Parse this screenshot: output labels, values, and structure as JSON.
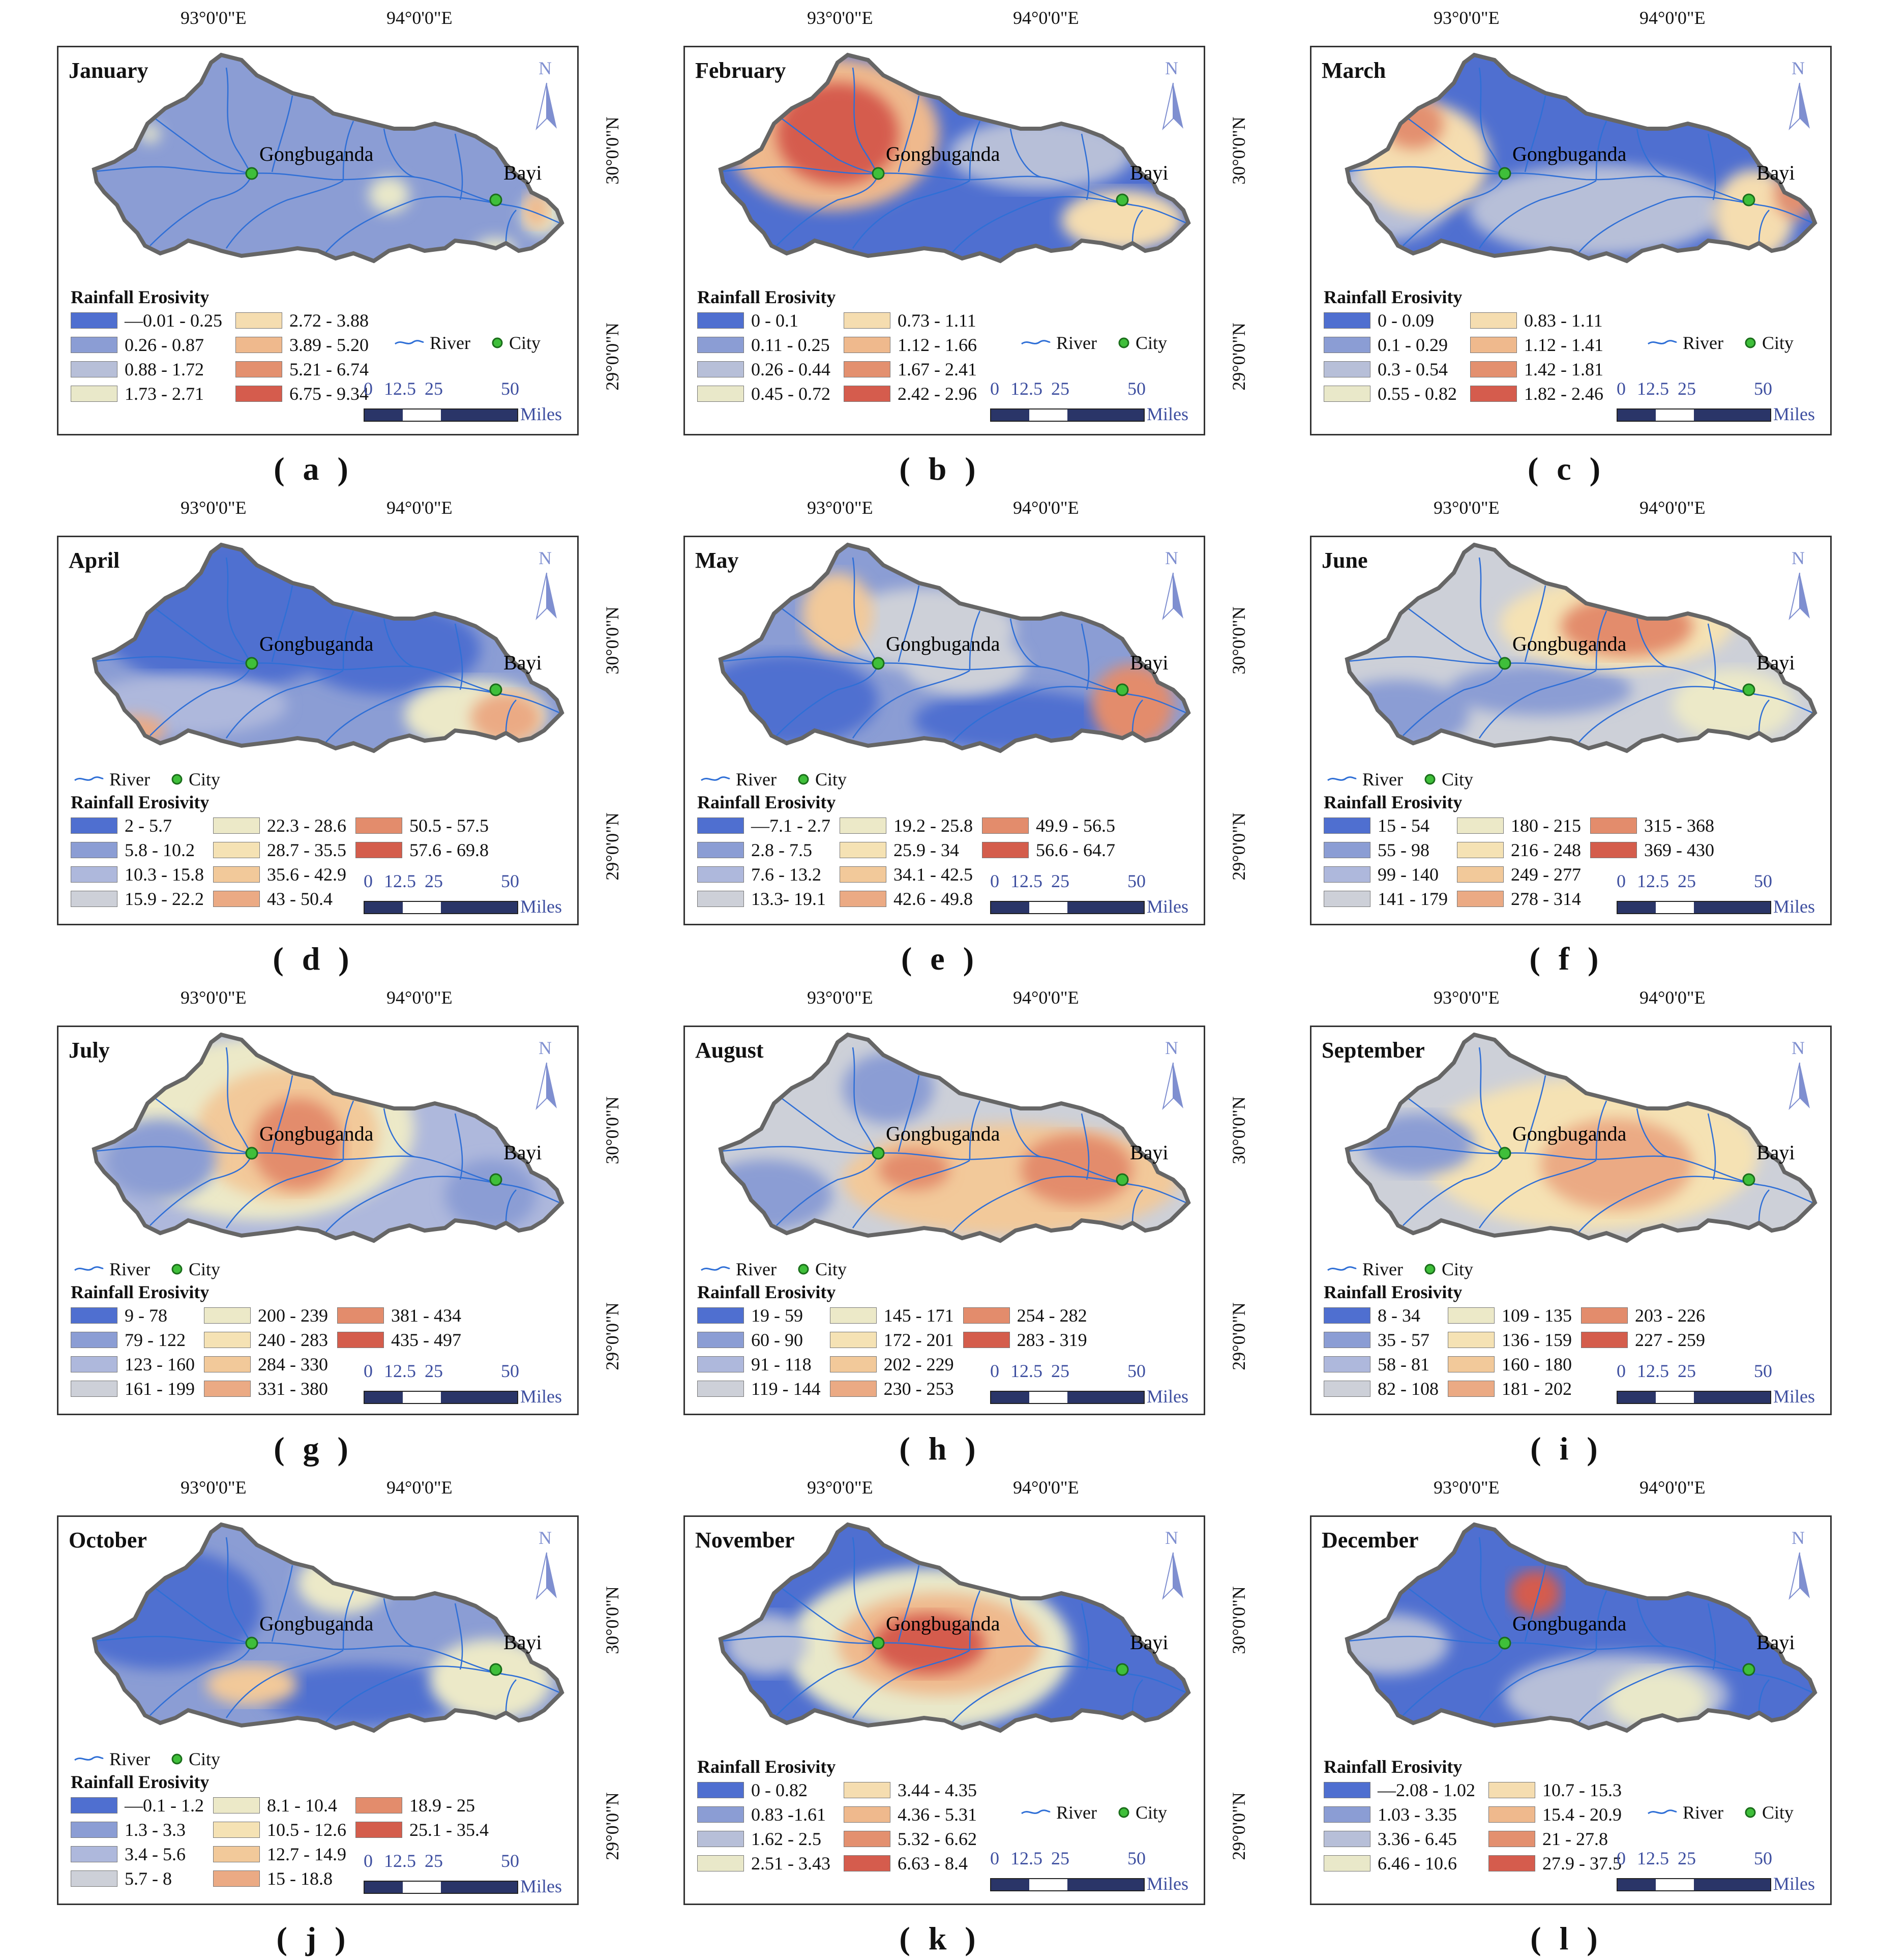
{
  "figure": {
    "coordinates": {
      "lon_labels": [
        "93°0'0\"E",
        "94°0'0\"E"
      ],
      "lat_labels": [
        "30°0'0\"N",
        "29°0'0\"N"
      ]
    },
    "legend_title": "Rainfall Erosivity",
    "river_label": "River",
    "city_label": "City",
    "city_names": [
      "Gongbuganda",
      "Bayi"
    ],
    "scale_bar": {
      "ticks": [
        "0",
        "12.5",
        "25",
        "50"
      ],
      "unit": "Miles"
    },
    "north_label": "N",
    "palette": [
      "#4f6fd0",
      "#8b9dd4",
      "#b7bfd8",
      "#e9e8c9",
      "#f5ddb0",
      "#efb98d",
      "#e3906f",
      "#d55c4d"
    ],
    "panels": [
      {
        "month": "January",
        "label": "( a )",
        "classes": [
          "—0.01 - 0.25",
          "0.26 - 0.87",
          "0.88 - 1.72",
          "1.73 - 2.71",
          "2.72 - 3.88",
          "3.89 - 5.20",
          "5.21 - 6.74",
          "6.75 - 9.34"
        ]
      },
      {
        "month": "February",
        "label": "( b )",
        "classes": [
          "0 - 0.1",
          "0.11 - 0.25",
          "0.26 - 0.44",
          "0.45 - 0.72",
          "0.73 - 1.11",
          "1.12 - 1.66",
          "1.67 - 2.41",
          "2.42 - 2.96"
        ]
      },
      {
        "month": "March",
        "label": "( c )",
        "classes": [
          "0 - 0.09",
          "0.1 - 0.29",
          "0.3 - 0.54",
          "0.55 - 0.82",
          "0.83 - 1.11",
          "1.12 - 1.41",
          "1.42 - 1.81",
          "1.82 - 2.46"
        ]
      },
      {
        "month": "April",
        "label": "( d )",
        "classes": [
          "2 - 5.7",
          "5.8 - 10.2",
          "10.3 - 15.8",
          "15.9 - 22.2",
          "22.3 - 28.6",
          "28.7 - 35.5",
          "35.6 - 42.9",
          "43 - 50.4",
          "50.5 - 57.5",
          "57.6 - 69.8"
        ]
      },
      {
        "month": "May",
        "label": "( e )",
        "classes": [
          "—7.1 - 2.7",
          "2.8 - 7.5",
          "7.6 - 13.2",
          "13.3- 19.1",
          "19.2 - 25.8",
          "25.9 - 34",
          "34.1 - 42.5",
          "42.6 - 49.8",
          "49.9 - 56.5",
          "56.6 - 64.7"
        ]
      },
      {
        "month": "June",
        "label": "( f )",
        "classes": [
          "15 - 54",
          "55 - 98",
          "99 - 140",
          "141 - 179",
          "180 - 215",
          "216 - 248",
          "249 - 277",
          "278 - 314",
          "315 - 368",
          "369 - 430"
        ]
      },
      {
        "month": "July",
        "label": "( g )",
        "classes": [
          "9 - 78",
          "79 - 122",
          "123 - 160",
          "161 - 199",
          "200 - 239",
          "240 - 283",
          "284 - 330",
          "331 - 380",
          "381 - 434",
          "435 - 497"
        ]
      },
      {
        "month": "August",
        "label": "( h )",
        "classes": [
          "19 - 59",
          "60 - 90",
          "91 - 118",
          "119 - 144",
          "145 - 171",
          "172 - 201",
          "202 - 229",
          "230 - 253",
          "254 - 282",
          "283 - 319"
        ]
      },
      {
        "month": "September",
        "label": "( i )",
        "classes": [
          "8 - 34",
          "35 - 57",
          "58 - 81",
          "82 - 108",
          "109 - 135",
          "136 - 159",
          "160 - 180",
          "181 - 202",
          "203 - 226",
          "227 - 259"
        ]
      },
      {
        "month": "October",
        "label": "( j )",
        "classes": [
          "—0.1 - 1.2",
          "1.3 - 3.3",
          "3.4 - 5.6",
          "5.7 - 8",
          "8.1 - 10.4",
          "10.5 - 12.6",
          "12.7 - 14.9",
          "15 - 18.8",
          "18.9 - 25",
          "25.1 - 35.4"
        ]
      },
      {
        "month": "November",
        "label": "( k )",
        "classes": [
          "0 - 0.82",
          "0.83 -1.61",
          "1.62 - 2.5",
          "2.51 - 3.43",
          "3.44 - 4.35",
          "4.36 - 5.31",
          "5.32 - 6.62",
          "6.63 - 8.4"
        ]
      },
      {
        "month": "December",
        "label": "( l )",
        "classes": [
          "—2.08 - 1.02",
          "1.03 - 3.35",
          "3.36 - 6.45",
          "6.46 - 10.6",
          "10.7 - 15.3",
          "15.4 - 20.9",
          "21 - 27.8",
          "27.9 - 37.5"
        ]
      }
    ]
  }
}
